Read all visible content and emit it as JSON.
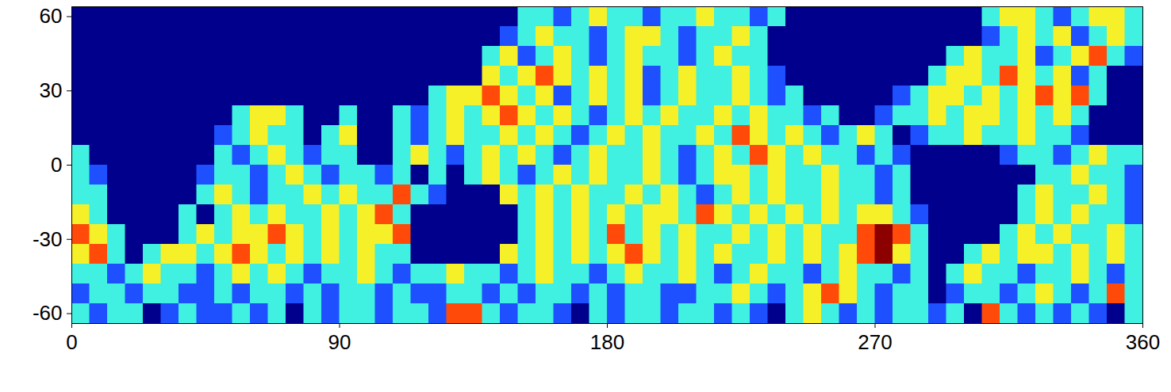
{
  "chart_data": {
    "type": "heatmap",
    "xlim": [
      0,
      360
    ],
    "xticks": [
      0,
      90,
      180,
      270,
      360
    ],
    "ylim": [
      -64,
      64
    ],
    "yticks": [
      -60,
      -30,
      0,
      30,
      60
    ],
    "lon_edges": [
      0,
      6,
      12,
      18,
      24,
      30,
      36,
      42,
      48,
      54,
      60,
      66,
      72,
      78,
      84,
      90,
      96,
      102,
      108,
      114,
      120,
      126,
      132,
      138,
      144,
      150,
      156,
      162,
      168,
      174,
      180,
      186,
      192,
      198,
      204,
      210,
      216,
      222,
      228,
      234,
      240,
      246,
      252,
      258,
      264,
      270,
      276,
      282,
      288,
      294,
      300,
      306,
      312,
      318,
      324,
      330,
      336,
      342,
      348,
      354,
      360
    ],
    "lat_edges": [
      64,
      56,
      48,
      40,
      32,
      24,
      16,
      8,
      0,
      -8,
      -16,
      -24,
      -32,
      -40,
      -48,
      -56,
      -64
    ],
    "color_levels": [
      0,
      1,
      2,
      3,
      4,
      5
    ],
    "colors": [
      "#00008C",
      "#1E50FF",
      "#40F0E0",
      "#F5F028",
      "#FF4A0A",
      "#8C0000"
    ],
    "cells": [
      [
        0,
        0,
        0,
        0,
        0,
        0,
        0,
        0,
        0,
        0,
        0,
        0,
        0,
        0,
        0,
        0,
        0,
        0,
        0,
        0,
        0,
        0,
        0,
        0,
        0,
        2,
        2,
        1,
        2,
        3,
        2,
        2,
        1,
        2,
        2,
        3,
        2,
        2,
        1,
        2,
        0,
        0,
        0,
        0,
        0,
        0,
        0,
        0,
        0,
        0,
        0,
        2,
        3,
        3,
        2,
        1,
        2,
        3,
        3,
        2
      ],
      [
        0,
        0,
        0,
        0,
        0,
        0,
        0,
        0,
        0,
        0,
        0,
        0,
        0,
        0,
        0,
        0,
        0,
        0,
        0,
        0,
        0,
        0,
        0,
        0,
        1,
        2,
        3,
        2,
        2,
        1,
        2,
        3,
        3,
        2,
        1,
        2,
        2,
        3,
        2,
        0,
        0,
        0,
        0,
        0,
        0,
        0,
        0,
        0,
        0,
        0,
        0,
        1,
        2,
        3,
        2,
        3,
        1,
        2,
        3,
        2
      ],
      [
        0,
        0,
        0,
        0,
        0,
        0,
        0,
        0,
        0,
        0,
        0,
        0,
        0,
        0,
        0,
        0,
        0,
        0,
        0,
        0,
        0,
        0,
        0,
        2,
        3,
        1,
        2,
        3,
        2,
        1,
        2,
        3,
        2,
        2,
        1,
        2,
        3,
        2,
        2,
        0,
        0,
        0,
        0,
        0,
        0,
        0,
        0,
        0,
        0,
        2,
        3,
        2,
        2,
        3,
        1,
        2,
        3,
        4,
        2,
        1
      ],
      [
        0,
        0,
        0,
        0,
        0,
        0,
        0,
        0,
        0,
        0,
        0,
        0,
        0,
        0,
        0,
        0,
        0,
        0,
        0,
        0,
        0,
        0,
        0,
        3,
        2,
        3,
        4,
        3,
        2,
        3,
        2,
        3,
        1,
        2,
        3,
        2,
        2,
        3,
        2,
        1,
        0,
        0,
        0,
        0,
        0,
        0,
        0,
        0,
        2,
        3,
        3,
        2,
        4,
        3,
        2,
        3,
        1,
        2,
        0,
        0
      ],
      [
        0,
        0,
        0,
        0,
        0,
        0,
        0,
        0,
        0,
        0,
        0,
        0,
        0,
        0,
        0,
        0,
        0,
        0,
        0,
        0,
        2,
        3,
        3,
        4,
        3,
        2,
        3,
        1,
        2,
        3,
        2,
        3,
        1,
        2,
        3,
        2,
        2,
        3,
        2,
        1,
        2,
        0,
        0,
        0,
        0,
        0,
        1,
        2,
        3,
        3,
        2,
        3,
        2,
        3,
        4,
        3,
        4,
        2,
        0,
        0
      ],
      [
        0,
        0,
        0,
        0,
        0,
        0,
        0,
        0,
        0,
        2,
        3,
        3,
        2,
        0,
        0,
        2,
        0,
        0,
        2,
        1,
        2,
        3,
        2,
        3,
        4,
        3,
        2,
        3,
        2,
        1,
        2,
        3,
        2,
        3,
        2,
        2,
        3,
        2,
        3,
        2,
        2,
        1,
        2,
        0,
        0,
        1,
        2,
        2,
        3,
        2,
        3,
        3,
        2,
        3,
        2,
        3,
        2,
        0,
        0,
        0
      ],
      [
        0,
        0,
        0,
        0,
        0,
        0,
        0,
        0,
        1,
        2,
        3,
        2,
        2,
        0,
        2,
        3,
        0,
        0,
        2,
        1,
        2,
        3,
        2,
        2,
        3,
        2,
        3,
        2,
        1,
        2,
        3,
        2,
        3,
        2,
        2,
        3,
        2,
        4,
        3,
        2,
        3,
        2,
        1,
        2,
        3,
        2,
        0,
        1,
        2,
        2,
        3,
        2,
        2,
        3,
        2,
        2,
        1,
        0,
        0,
        0
      ],
      [
        2,
        0,
        0,
        0,
        0,
        0,
        0,
        0,
        2,
        1,
        2,
        3,
        2,
        1,
        2,
        2,
        0,
        0,
        2,
        3,
        2,
        1,
        2,
        3,
        2,
        3,
        2,
        1,
        2,
        3,
        2,
        2,
        3,
        2,
        1,
        2,
        3,
        2,
        4,
        3,
        2,
        3,
        2,
        2,
        1,
        2,
        1,
        0,
        0,
        0,
        0,
        0,
        1,
        2,
        2,
        1,
        2,
        3,
        2,
        2
      ],
      [
        2,
        1,
        0,
        0,
        0,
        0,
        0,
        1,
        2,
        2,
        1,
        2,
        3,
        2,
        1,
        2,
        2,
        1,
        2,
        0,
        2,
        0,
        2,
        3,
        2,
        1,
        2,
        3,
        2,
        3,
        2,
        2,
        3,
        2,
        1,
        2,
        3,
        3,
        2,
        3,
        2,
        2,
        3,
        2,
        2,
        1,
        2,
        0,
        0,
        0,
        0,
        0,
        0,
        0,
        2,
        2,
        3,
        2,
        2,
        1
      ],
      [
        2,
        2,
        0,
        0,
        0,
        0,
        0,
        2,
        3,
        2,
        1,
        2,
        2,
        3,
        2,
        3,
        2,
        2,
        4,
        2,
        1,
        0,
        0,
        0,
        3,
        2,
        3,
        2,
        3,
        2,
        2,
        3,
        2,
        3,
        2,
        1,
        2,
        3,
        2,
        3,
        2,
        2,
        3,
        2,
        2,
        1,
        2,
        0,
        0,
        0,
        0,
        0,
        0,
        2,
        3,
        2,
        2,
        3,
        2,
        1
      ],
      [
        3,
        2,
        0,
        0,
        0,
        0,
        2,
        0,
        2,
        3,
        2,
        3,
        2,
        2,
        3,
        2,
        3,
        4,
        2,
        0,
        0,
        0,
        0,
        0,
        0,
        2,
        3,
        2,
        3,
        2,
        3,
        2,
        3,
        3,
        2,
        4,
        3,
        2,
        3,
        2,
        3,
        2,
        3,
        2,
        3,
        3,
        2,
        1,
        0,
        0,
        0,
        0,
        0,
        2,
        3,
        2,
        3,
        2,
        2,
        1
      ],
      [
        4,
        3,
        2,
        0,
        0,
        0,
        2,
        3,
        2,
        3,
        3,
        4,
        3,
        2,
        3,
        2,
        3,
        3,
        4,
        0,
        0,
        0,
        0,
        0,
        0,
        2,
        3,
        2,
        3,
        2,
        4,
        2,
        3,
        2,
        3,
        2,
        2,
        3,
        2,
        3,
        2,
        3,
        2,
        2,
        4,
        5,
        4,
        2,
        0,
        0,
        0,
        0,
        2,
        3,
        2,
        3,
        2,
        2,
        3,
        2
      ],
      [
        3,
        4,
        2,
        0,
        2,
        3,
        3,
        2,
        3,
        4,
        3,
        2,
        3,
        2,
        3,
        2,
        3,
        2,
        2,
        0,
        0,
        0,
        0,
        0,
        3,
        2,
        3,
        2,
        3,
        2,
        3,
        4,
        3,
        2,
        3,
        2,
        3,
        2,
        2,
        3,
        2,
        3,
        2,
        3,
        4,
        5,
        3,
        2,
        0,
        0,
        2,
        3,
        2,
        3,
        3,
        2,
        3,
        2,
        3,
        2
      ],
      [
        2,
        2,
        1,
        2,
        3,
        2,
        2,
        1,
        2,
        3,
        2,
        3,
        2,
        1,
        2,
        2,
        3,
        2,
        1,
        2,
        2,
        3,
        2,
        2,
        1,
        2,
        3,
        2,
        2,
        1,
        2,
        3,
        2,
        2,
        3,
        2,
        1,
        2,
        3,
        2,
        2,
        1,
        2,
        3,
        2,
        2,
        1,
        2,
        0,
        2,
        3,
        2,
        2,
        1,
        2,
        2,
        3,
        2,
        1,
        2
      ],
      [
        1,
        2,
        2,
        1,
        2,
        2,
        1,
        1,
        2,
        1,
        2,
        2,
        1,
        2,
        1,
        2,
        2,
        1,
        2,
        1,
        1,
        2,
        2,
        1,
        2,
        1,
        2,
        2,
        1,
        2,
        1,
        2,
        2,
        1,
        1,
        2,
        2,
        3,
        2,
        1,
        2,
        3,
        4,
        3,
        2,
        1,
        2,
        2,
        0,
        1,
        2,
        2,
        1,
        2,
        3,
        2,
        1,
        2,
        4,
        2
      ],
      [
        2,
        1,
        2,
        2,
        0,
        1,
        2,
        1,
        1,
        2,
        1,
        2,
        0,
        2,
        1,
        2,
        2,
        1,
        2,
        2,
        1,
        4,
        4,
        2,
        1,
        2,
        2,
        1,
        0,
        2,
        1,
        2,
        2,
        1,
        2,
        2,
        1,
        2,
        1,
        0,
        2,
        3,
        2,
        1,
        2,
        1,
        2,
        2,
        1,
        2,
        0,
        4,
        2,
        1,
        2,
        1,
        2,
        1,
        0,
        2
      ]
    ]
  }
}
